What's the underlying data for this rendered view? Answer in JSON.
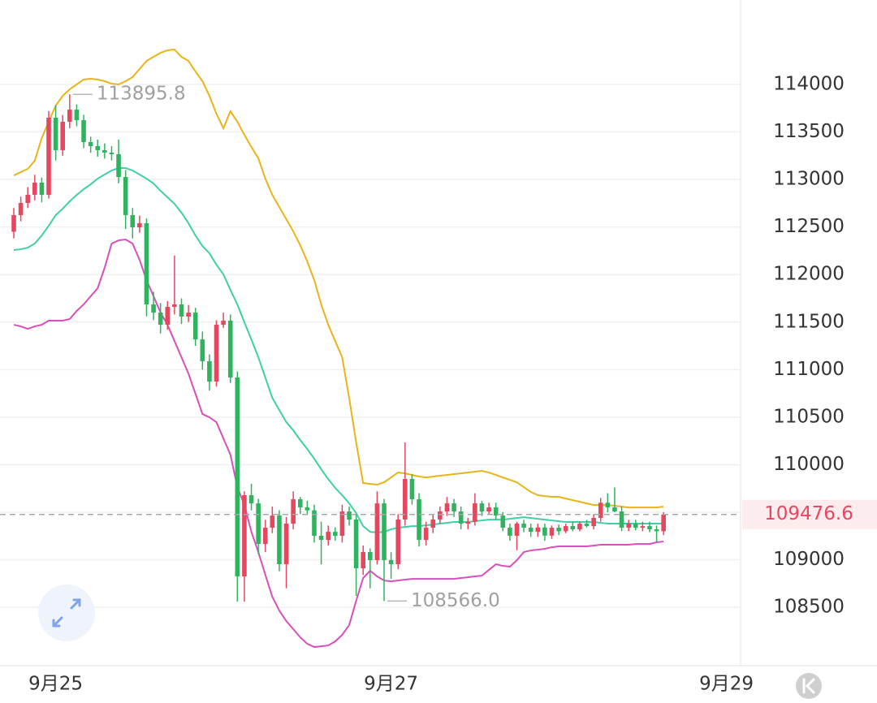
{
  "chart_data": {
    "type": "candlestick",
    "categories": [
      null,
      null,
      null,
      null,
      null,
      null,
      "9月25",
      null,
      null,
      null,
      null,
      null,
      null,
      null,
      null,
      null,
      null,
      null,
      null,
      null,
      null,
      null,
      null,
      null,
      null,
      null,
      null,
      null,
      null,
      null,
      null,
      null,
      null,
      null,
      null,
      null,
      null,
      null,
      null,
      null,
      null,
      null,
      null,
      null,
      null,
      null,
      null,
      null,
      null,
      null,
      null,
      null,
      null,
      null,
      "9月27",
      null,
      null,
      null,
      null,
      null,
      null,
      null,
      null,
      null,
      null,
      null,
      null,
      null,
      null,
      null,
      null,
      null,
      null,
      null,
      null,
      null,
      null,
      null,
      null,
      null,
      null,
      null,
      null,
      null,
      null,
      null,
      null,
      null,
      null,
      null,
      null,
      null,
      null,
      null,
      null,
      null,
      null,
      null,
      null,
      null,
      null,
      null,
      "9月29"
    ],
    "candles": [
      [
        112450,
        112700,
        112380,
        112625
      ],
      [
        112625,
        112820,
        112560,
        112753
      ],
      [
        112753,
        112920,
        112700,
        112839
      ],
      [
        112839,
        113050,
        112780,
        112967
      ],
      [
        112967,
        113020,
        112760,
        112839
      ],
      [
        112839,
        113720,
        112800,
        113650
      ],
      [
        113650,
        113780,
        113200,
        113308
      ],
      [
        113308,
        113680,
        113250,
        113607
      ],
      [
        113607,
        113895.8,
        113540,
        113735
      ],
      [
        113735,
        113790,
        113560,
        113624
      ],
      [
        113624,
        113680,
        113330,
        113394
      ],
      [
        113394,
        113450,
        113280,
        113351
      ],
      [
        113351,
        113420,
        113240,
        113308
      ],
      [
        113308,
        113380,
        113220,
        113283
      ],
      [
        113283,
        113350,
        113200,
        113266
      ],
      [
        113266,
        113420,
        112960,
        113026
      ],
      [
        113026,
        113100,
        112480,
        112625
      ],
      [
        112625,
        112700,
        112380,
        112497
      ],
      [
        112497,
        112620,
        112440,
        112540
      ],
      [
        112540,
        112590,
        111560,
        111686
      ],
      [
        111686,
        111820,
        111520,
        111600
      ],
      [
        111600,
        111700,
        111380,
        111472
      ],
      [
        111472,
        111720,
        111420,
        111660
      ],
      [
        111660,
        112200,
        111580,
        111686
      ],
      [
        111686,
        111750,
        111480,
        111558
      ],
      [
        111558,
        111680,
        111500,
        111600
      ],
      [
        111600,
        111650,
        111250,
        111318
      ],
      [
        111318,
        111400,
        111000,
        111088
      ],
      [
        111088,
        111160,
        110780,
        110874
      ],
      [
        110874,
        111520,
        110820,
        111472
      ],
      [
        111472,
        111600,
        111440,
        111515
      ],
      [
        111515,
        111580,
        110860,
        110917
      ],
      [
        110917,
        110980,
        108560,
        108825
      ],
      [
        108825,
        109720,
        108560,
        109679
      ],
      [
        109679,
        109800,
        109520,
        109593
      ],
      [
        109593,
        109640,
        109060,
        109166
      ],
      [
        109166,
        109420,
        109080,
        109337
      ],
      [
        109337,
        109560,
        109280,
        109465
      ],
      [
        109465,
        109520,
        108880,
        108953
      ],
      [
        108953,
        109450,
        108700,
        109380
      ],
      [
        109380,
        109720,
        109320,
        109636
      ],
      [
        109636,
        109660,
        109480,
        109551
      ],
      [
        109551,
        109620,
        109470,
        109520
      ],
      [
        109520,
        109580,
        109180,
        109252
      ],
      [
        109252,
        109400,
        108950,
        109209
      ],
      [
        109209,
        109360,
        109150,
        109294
      ],
      [
        109294,
        109340,
        109200,
        109252
      ],
      [
        109252,
        109580,
        109180,
        109508
      ],
      [
        109508,
        109560,
        109360,
        109423
      ],
      [
        109423,
        109480,
        108620,
        108910
      ],
      [
        108910,
        109150,
        108840,
        109081
      ],
      [
        109081,
        109120,
        108700,
        108996
      ],
      [
        108996,
        109720,
        108950,
        109593
      ],
      [
        109593,
        109640,
        108566.0,
        108996
      ],
      [
        108996,
        109080,
        108800,
        108953
      ],
      [
        108953,
        109480,
        108900,
        109423
      ],
      [
        109423,
        110234,
        109360,
        109850
      ],
      [
        109850,
        109900,
        109580,
        109636
      ],
      [
        109636,
        109700,
        109140,
        109209
      ],
      [
        109209,
        109400,
        109150,
        109337
      ],
      [
        109337,
        109480,
        109280,
        109423
      ],
      [
        109423,
        109560,
        109380,
        109508
      ],
      [
        109508,
        109660,
        109460,
        109593
      ],
      [
        109593,
        109640,
        109450,
        109508
      ],
      [
        109508,
        109560,
        109320,
        109380
      ],
      [
        109380,
        109440,
        109320,
        109400
      ],
      [
        109400,
        109700,
        109360,
        109593
      ],
      [
        109593,
        109620,
        109460,
        109508
      ],
      [
        109508,
        109600,
        109480,
        109551
      ],
      [
        109551,
        109600,
        109420,
        109465
      ],
      [
        109465,
        109500,
        109300,
        109337
      ],
      [
        109337,
        109380,
        109200,
        109252
      ],
      [
        109252,
        109400,
        109100,
        109380
      ],
      [
        109380,
        109420,
        109290,
        109337
      ],
      [
        109337,
        109380,
        109240,
        109294
      ],
      [
        109294,
        109380,
        109240,
        109340
      ],
      [
        109340,
        109380,
        109200,
        109254
      ],
      [
        109254,
        109360,
        109220,
        109337
      ],
      [
        109337,
        109370,
        109260,
        109300
      ],
      [
        109300,
        109380,
        109280,
        109354
      ],
      [
        109354,
        109400,
        109300,
        109320
      ],
      [
        109320,
        109400,
        109300,
        109380
      ],
      [
        109380,
        109420,
        109340,
        109354
      ],
      [
        109354,
        109480,
        109320,
        109440
      ],
      [
        109440,
        109650,
        109400,
        109600
      ],
      [
        109600,
        109700,
        109500,
        109551
      ],
      [
        109551,
        109760,
        109500,
        109508
      ],
      [
        109508,
        109560,
        109300,
        109337
      ],
      [
        109337,
        109420,
        109300,
        109380
      ],
      [
        109380,
        109420,
        109310,
        109337
      ],
      [
        109337,
        109400,
        109300,
        109354
      ],
      [
        109354,
        109400,
        109290,
        109320
      ],
      [
        109320,
        109360,
        109190,
        109300
      ],
      [
        109300,
        109500,
        109260,
        109476.6
      ],
      null,
      null,
      null,
      null,
      null,
      null,
      null,
      null,
      null
    ],
    "up_color": "#e5485e",
    "down_color": "#2fb35f",
    "bands": [
      {
        "color": "#e8b419",
        "values": [
          113043,
          113078,
          113112,
          113197,
          113436,
          113607,
          113778,
          113880,
          113949,
          114000,
          114051,
          114060,
          114051,
          114034,
          114008,
          114000,
          114034,
          114077,
          114162,
          114247,
          114290,
          114333,
          114359,
          114367,
          114290,
          114247,
          114136,
          114034,
          113880,
          113692,
          113539,
          113718,
          113607,
          113470,
          113342,
          113223,
          113009,
          112838,
          112710,
          112582,
          112454,
          112309,
          112138,
          111942,
          111685,
          111472,
          111301,
          111130,
          110703,
          110234,
          109807,
          109798,
          109790,
          109815,
          109866,
          109918,
          109909,
          109892,
          109875,
          109866,
          109875,
          109884,
          109892,
          109901,
          109909,
          109918,
          109926,
          109935,
          109918,
          109892,
          109866,
          109841,
          109815,
          109764,
          109713,
          109679,
          109670,
          109662,
          109662,
          109644,
          109627,
          109610,
          109593,
          109576,
          109576,
          109576,
          109568,
          109559,
          109550,
          109550,
          109550,
          109550,
          109550,
          109559,
          null,
          null,
          null,
          null,
          null,
          null,
          null,
          null,
          null
        ]
      },
      {
        "color": "#3fcfa6",
        "values": [
          112258,
          112266,
          112283,
          112326,
          112411,
          112514,
          112625,
          112693,
          112770,
          112838,
          112898,
          112949,
          113009,
          113052,
          113095,
          113120,
          113120,
          113095,
          113052,
          113009,
          112958,
          112881,
          112813,
          112744,
          112651,
          112540,
          112411,
          112300,
          112224,
          112104,
          112002,
          111839,
          111686,
          111498,
          111318,
          111130,
          110917,
          110703,
          110575,
          110447,
          110362,
          110259,
          110166,
          110063,
          109952,
          109849,
          109756,
          109679,
          109593,
          109491,
          109354,
          109294,
          109286,
          109294,
          109320,
          109337,
          109345,
          109354,
          109354,
          109362,
          109371,
          109380,
          109388,
          109397,
          109397,
          109397,
          109405,
          109414,
          109422,
          109422,
          109422,
          109431,
          109439,
          109448,
          109439,
          109431,
          109422,
          109414,
          109405,
          109397,
          109397,
          109397,
          109397,
          109397,
          109388,
          109380,
          109380,
          109380,
          109380,
          109380,
          109380,
          109380,
          109380,
          109380,
          null,
          null,
          null,
          null,
          null,
          null,
          null,
          null,
          null
        ]
      },
      {
        "color": "#d64fbb",
        "values": [
          111472,
          111455,
          111429,
          111455,
          111472,
          111515,
          111515,
          111515,
          111532,
          111617,
          111686,
          111771,
          111856,
          112070,
          112326,
          112360,
          112369,
          112326,
          112155,
          111942,
          111771,
          111600,
          111472,
          111301,
          111130,
          110958,
          110746,
          110533,
          110498,
          110447,
          110276,
          110106,
          109764,
          109576,
          109294,
          109081,
          108842,
          108611,
          108466,
          108355,
          108270,
          108184,
          108116,
          108082,
          108090,
          108099,
          108141,
          108210,
          108312,
          108568,
          108808,
          108884,
          108825,
          108782,
          108773,
          108782,
          108791,
          108799,
          108799,
          108799,
          108799,
          108799,
          108799,
          108799,
          108808,
          108816,
          108825,
          108833,
          108893,
          108953,
          108936,
          108927,
          108995,
          109081,
          109098,
          109106,
          109115,
          109132,
          109141,
          109141,
          109141,
          109141,
          109141,
          109149,
          109158,
          109158,
          109158,
          109158,
          109158,
          109166,
          109166,
          109166,
          109184,
          109192,
          null,
          null,
          null,
          null,
          null,
          null,
          null,
          null,
          null
        ]
      }
    ],
    "ylim": [
      107886,
      114888
    ],
    "yticks": [
      108500,
      109000,
      109500,
      110000,
      110500,
      111000,
      111500,
      112000,
      112500,
      113000,
      113500,
      114000
    ],
    "grid": true,
    "annotations": [
      {
        "value": 113895.8,
        "label": "113895.8"
      },
      {
        "value": 108566.0,
        "label": "108566.0"
      }
    ],
    "current_price": {
      "value": 109476.6,
      "label": "109476.6"
    }
  }
}
